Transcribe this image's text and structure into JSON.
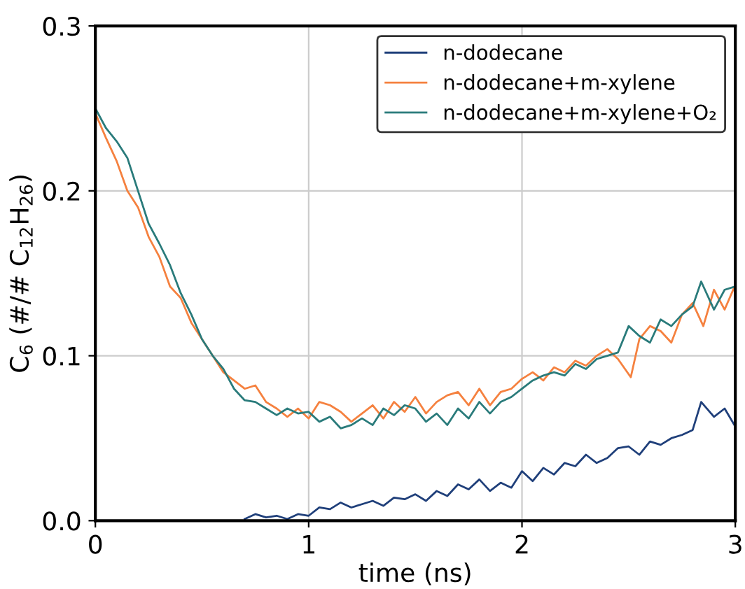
{
  "chart_data": {
    "type": "line",
    "xlabel": "time (ns)",
    "ylabel": "C$_{6}$ (#/# C$_{12}$H$_{26}$)",
    "xlim": [
      0,
      3
    ],
    "ylim": [
      0,
      0.3
    ],
    "xticks": [
      0,
      1,
      2,
      3
    ],
    "yticks": [
      {
        "value": 0,
        "label": "0.0"
      },
      {
        "value": 0.1,
        "label": "0.1"
      },
      {
        "value": 0.2,
        "label": "0.2"
      },
      {
        "value": 0.3,
        "label": "0.3"
      }
    ],
    "grid": true,
    "legend": "top right",
    "marker": "none",
    "line_style": "solid",
    "series": [
      {
        "name": "n-dodecane",
        "color": "#1f3f7a",
        "x": [
          0.7,
          0.75,
          0.8,
          0.85,
          0.9,
          0.95,
          1.0,
          1.05,
          1.1,
          1.15,
          1.2,
          1.25,
          1.3,
          1.35,
          1.4,
          1.45,
          1.5,
          1.55,
          1.6,
          1.65,
          1.7,
          1.75,
          1.8,
          1.85,
          1.9,
          1.95,
          2.0,
          2.05,
          2.1,
          2.15,
          2.2,
          2.25,
          2.3,
          2.35,
          2.4,
          2.45,
          2.5,
          2.55,
          2.6,
          2.65,
          2.7,
          2.75,
          2.8,
          2.84,
          2.9,
          2.95,
          3.0
        ],
        "values": [
          0.001,
          0.004,
          0.002,
          0.003,
          0.001,
          0.004,
          0.003,
          0.008,
          0.007,
          0.011,
          0.008,
          0.01,
          0.012,
          0.009,
          0.014,
          0.013,
          0.016,
          0.012,
          0.018,
          0.015,
          0.022,
          0.019,
          0.025,
          0.018,
          0.023,
          0.02,
          0.03,
          0.024,
          0.032,
          0.028,
          0.035,
          0.033,
          0.04,
          0.035,
          0.038,
          0.044,
          0.045,
          0.04,
          0.048,
          0.046,
          0.05,
          0.052,
          0.055,
          0.072,
          0.063,
          0.068,
          0.057
        ]
      },
      {
        "name": "n-dodecane+m-xylene",
        "color": "#f5813f",
        "x": [
          0,
          0.05,
          0.1,
          0.15,
          0.2,
          0.25,
          0.3,
          0.35,
          0.4,
          0.45,
          0.5,
          0.55,
          0.6,
          0.65,
          0.7,
          0.75,
          0.8,
          0.85,
          0.9,
          0.95,
          1.0,
          1.05,
          1.1,
          1.15,
          1.2,
          1.25,
          1.3,
          1.35,
          1.4,
          1.45,
          1.5,
          1.55,
          1.6,
          1.65,
          1.7,
          1.75,
          1.8,
          1.85,
          1.9,
          1.95,
          2.0,
          2.05,
          2.1,
          2.15,
          2.2,
          2.25,
          2.3,
          2.35,
          2.4,
          2.45,
          2.51,
          2.55,
          2.6,
          2.65,
          2.7,
          2.75,
          2.8,
          2.85,
          2.9,
          2.95,
          3.0
        ],
        "values": [
          0.247,
          0.232,
          0.218,
          0.2,
          0.19,
          0.172,
          0.16,
          0.142,
          0.135,
          0.12,
          0.11,
          0.1,
          0.09,
          0.085,
          0.08,
          0.082,
          0.072,
          0.068,
          0.063,
          0.068,
          0.062,
          0.072,
          0.07,
          0.066,
          0.06,
          0.065,
          0.07,
          0.062,
          0.072,
          0.066,
          0.075,
          0.065,
          0.072,
          0.076,
          0.078,
          0.07,
          0.08,
          0.07,
          0.078,
          0.08,
          0.086,
          0.09,
          0.085,
          0.093,
          0.09,
          0.097,
          0.094,
          0.1,
          0.104,
          0.098,
          0.087,
          0.11,
          0.118,
          0.115,
          0.108,
          0.125,
          0.132,
          0.118,
          0.14,
          0.128,
          0.143
        ]
      },
      {
        "name": "n-dodecane+m-xylene+O₂",
        "color": "#2a7b7b",
        "x": [
          0,
          0.05,
          0.1,
          0.15,
          0.2,
          0.25,
          0.3,
          0.35,
          0.4,
          0.45,
          0.5,
          0.55,
          0.6,
          0.65,
          0.7,
          0.75,
          0.8,
          0.85,
          0.9,
          0.95,
          1.0,
          1.05,
          1.1,
          1.15,
          1.2,
          1.25,
          1.3,
          1.35,
          1.4,
          1.45,
          1.5,
          1.55,
          1.6,
          1.65,
          1.7,
          1.75,
          1.8,
          1.85,
          1.9,
          1.95,
          2.0,
          2.05,
          2.1,
          2.15,
          2.2,
          2.25,
          2.3,
          2.35,
          2.4,
          2.45,
          2.5,
          2.55,
          2.6,
          2.65,
          2.7,
          2.75,
          2.8,
          2.84,
          2.9,
          2.95,
          3.0
        ],
        "values": [
          0.25,
          0.238,
          0.23,
          0.22,
          0.2,
          0.18,
          0.168,
          0.155,
          0.138,
          0.125,
          0.11,
          0.1,
          0.092,
          0.08,
          0.073,
          0.072,
          0.068,
          0.064,
          0.068,
          0.065,
          0.066,
          0.06,
          0.063,
          0.056,
          0.058,
          0.062,
          0.058,
          0.068,
          0.064,
          0.07,
          0.068,
          0.06,
          0.065,
          0.058,
          0.068,
          0.062,
          0.072,
          0.065,
          0.072,
          0.075,
          0.08,
          0.085,
          0.088,
          0.09,
          0.088,
          0.095,
          0.092,
          0.098,
          0.1,
          0.102,
          0.118,
          0.112,
          0.108,
          0.122,
          0.118,
          0.125,
          0.13,
          0.145,
          0.128,
          0.14,
          0.142
        ]
      }
    ]
  }
}
